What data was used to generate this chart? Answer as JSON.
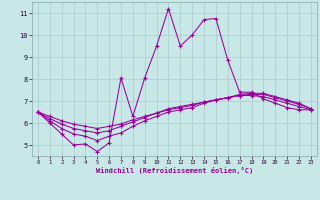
{
  "background_color": "#c8e8e8",
  "grid_color": "#b0cece",
  "line_color": "#990099",
  "x_label": "Windchill (Refroidissement éolien,°C)",
  "ylim": [
    4.5,
    11.5
  ],
  "xlim": [
    -0.5,
    23.5
  ],
  "yticks": [
    5,
    6,
    7,
    8,
    9,
    10,
    11
  ],
  "xticks": [
    0,
    1,
    2,
    3,
    4,
    5,
    6,
    7,
    8,
    9,
    10,
    11,
    12,
    13,
    14,
    15,
    16,
    17,
    18,
    19,
    20,
    21,
    22,
    23
  ],
  "series": {
    "line1": [
      6.5,
      6.0,
      5.5,
      5.0,
      5.05,
      4.7,
      5.1,
      8.05,
      6.3,
      8.05,
      9.5,
      11.2,
      9.5,
      10.0,
      10.7,
      10.75,
      8.85,
      7.4,
      7.4,
      7.1,
      6.9,
      6.7,
      6.6,
      6.6
    ],
    "line2": [
      6.5,
      6.1,
      5.75,
      5.5,
      5.4,
      5.2,
      5.4,
      5.55,
      5.85,
      6.1,
      6.3,
      6.5,
      6.6,
      6.7,
      6.9,
      7.05,
      7.15,
      7.25,
      7.25,
      7.2,
      7.05,
      6.9,
      6.75,
      6.6
    ],
    "line3": [
      6.5,
      6.2,
      5.95,
      5.75,
      5.65,
      5.55,
      5.65,
      5.85,
      6.05,
      6.25,
      6.45,
      6.6,
      6.7,
      6.8,
      6.95,
      7.05,
      7.15,
      7.25,
      7.3,
      7.3,
      7.15,
      7.0,
      6.85,
      6.65
    ],
    "line4": [
      6.5,
      6.3,
      6.1,
      5.95,
      5.85,
      5.75,
      5.85,
      5.95,
      6.15,
      6.3,
      6.45,
      6.65,
      6.75,
      6.85,
      6.95,
      7.05,
      7.15,
      7.3,
      7.35,
      7.35,
      7.2,
      7.05,
      6.9,
      6.65
    ]
  }
}
